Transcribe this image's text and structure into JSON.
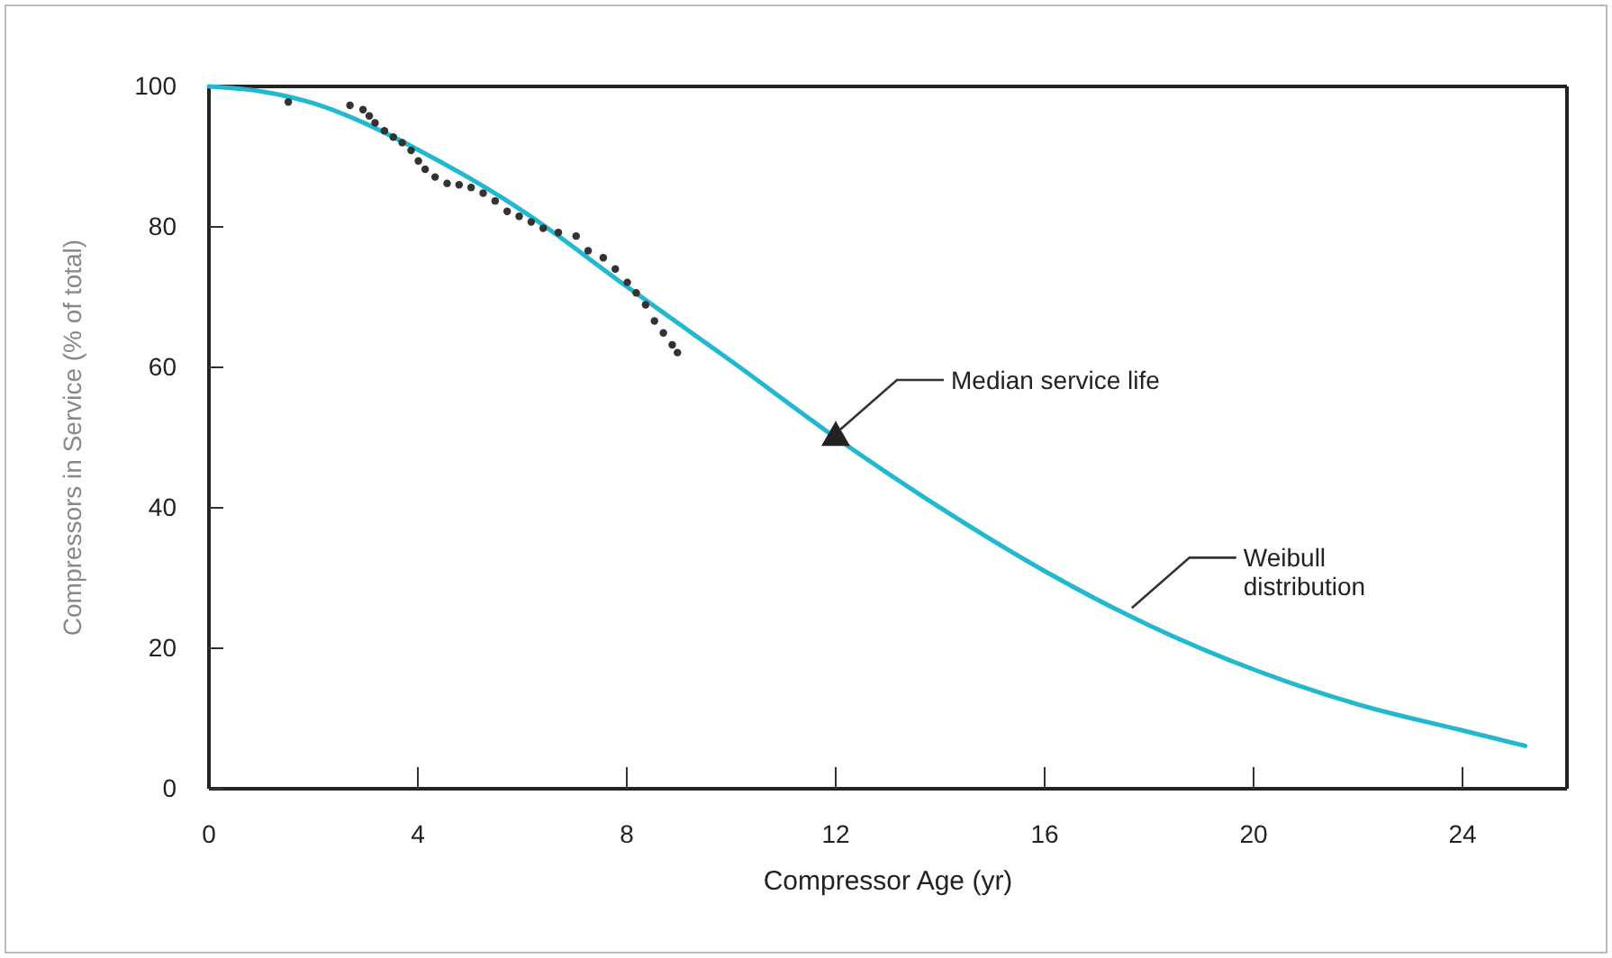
{
  "chart_data": {
    "type": "scatter",
    "xlabel": "Compressor Age (yr)",
    "ylabel": "Compressors in Service (% of total)",
    "xlim": [
      0,
      26
    ],
    "ylim": [
      0,
      100
    ],
    "xticks": [
      0,
      4,
      8,
      12,
      16,
      20,
      24
    ],
    "yticks": [
      0,
      20,
      40,
      60,
      80,
      100
    ],
    "grid": false,
    "series": [
      {
        "type": "line",
        "color": "#22b8cf",
        "marker": "none",
        "line_style": "solid",
        "x": [
          0,
          1,
          2,
          3,
          4,
          6,
          8,
          10,
          12,
          13.9,
          16,
          17.6,
          20.1,
          22,
          24,
          25.2
        ],
        "values": [
          100,
          99.3,
          97.6,
          94.7,
          91,
          82.3,
          71.5,
          60.9,
          50,
          40.5,
          31,
          24.7,
          16.7,
          12,
          8.3,
          6.1
        ]
      },
      {
        "color": "#333333",
        "marker": "circle",
        "x": [
          1.52,
          2.7,
          2.95,
          3.07,
          3.18,
          3.36,
          3.53,
          3.7,
          3.87,
          4.01,
          4.14,
          4.33,
          4.56,
          4.79,
          5.02,
          5.25,
          5.48,
          5.71,
          5.94,
          6.17,
          6.4,
          6.69,
          7.03,
          7.26,
          7.55,
          7.78,
          8.01,
          8.18,
          8.36,
          8.53,
          8.7,
          8.87,
          8.97
        ],
        "values": [
          97.8,
          97.3,
          96.7,
          95.8,
          94.8,
          93.7,
          92.8,
          92,
          90.9,
          89.4,
          88.2,
          87.1,
          86.2,
          86,
          85.6,
          84.8,
          83.7,
          82.2,
          81.5,
          80.7,
          79.8,
          79.2,
          78.7,
          76.6,
          75.6,
          74,
          72.1,
          70.6,
          68.9,
          66.6,
          64.9,
          63.2,
          62.1
        ]
      },
      {
        "color": "#222222",
        "marker": "triangle",
        "x": [
          12
        ],
        "values": [
          50
        ]
      }
    ],
    "annotations": [
      {
        "text": "Median service life",
        "x": 12,
        "y": 50
      },
      {
        "text": "Weibull distribution",
        "x": 17.6,
        "y": 24.7
      }
    ]
  }
}
